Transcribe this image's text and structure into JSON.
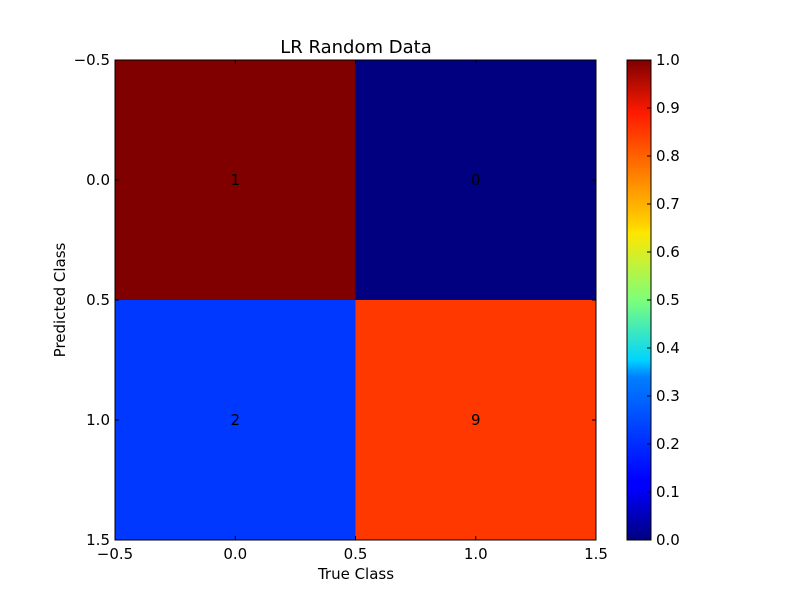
{
  "chart_data": {
    "type": "heatmap",
    "title": "LR Random Data",
    "xlabel": "True Class",
    "ylabel": "Predicted Class",
    "xlim": [
      -0.5,
      1.5
    ],
    "ylim": [
      1.5,
      -0.5
    ],
    "x_ticks": [
      "−0.5",
      "0.0",
      "0.5",
      "1.0",
      "1.5"
    ],
    "y_ticks": [
      "−0.5",
      "0.0",
      "0.5",
      "1.0",
      "1.5"
    ],
    "x_tick_values": [
      -0.5,
      0.0,
      0.5,
      1.0,
      1.5
    ],
    "y_tick_values": [
      -0.5,
      0.0,
      0.5,
      1.0,
      1.5
    ],
    "cells": [
      {
        "row": 0,
        "col": 0,
        "label": "1",
        "value": 1.0
      },
      {
        "row": 0,
        "col": 1,
        "label": "0",
        "value": 0.0
      },
      {
        "row": 1,
        "col": 0,
        "label": "2",
        "value": 0.18
      },
      {
        "row": 1,
        "col": 1,
        "label": "9",
        "value": 0.82
      }
    ],
    "colorbar": {
      "colormap": "jet",
      "range": [
        0.0,
        1.0
      ],
      "ticks": [
        "0.0",
        "0.1",
        "0.2",
        "0.3",
        "0.4",
        "0.5",
        "0.6",
        "0.7",
        "0.8",
        "0.9",
        "1.0"
      ],
      "tick_values": [
        0.0,
        0.1,
        0.2,
        0.3,
        0.4,
        0.5,
        0.6,
        0.7,
        0.8,
        0.9,
        1.0
      ]
    },
    "grid": false
  }
}
